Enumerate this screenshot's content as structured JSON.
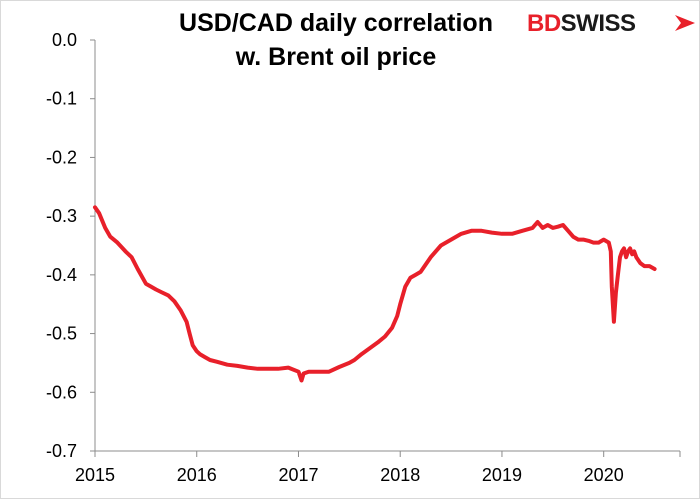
{
  "logo": {
    "text_primary": "BD",
    "text_secondary": "SWISS",
    "icon": "red-arrow-icon",
    "colors": {
      "primary": "#e8202a",
      "secondary": "#1a1a1a"
    }
  },
  "chart_data": {
    "type": "line",
    "title_line1": "USD/CAD daily correlation",
    "title_line2": "w. Brent oil price",
    "xlabel": "",
    "ylabel": "",
    "x_ticks": [
      "2015",
      "2016",
      "2017",
      "2018",
      "2019",
      "2020"
    ],
    "x_range": [
      2015.0,
      2020.75
    ],
    "y_ticks": [
      "0.0",
      "-0.1",
      "-0.2",
      "-0.3",
      "-0.4",
      "-0.5",
      "-0.6",
      "-0.7"
    ],
    "ylim": [
      -0.7,
      0.0
    ],
    "grid": false,
    "legend": "none",
    "series": [
      {
        "color": "#e8202a",
        "x": [
          2015.0,
          2015.04,
          2015.1,
          2015.15,
          2015.22,
          2015.3,
          2015.36,
          2015.42,
          2015.5,
          2015.55,
          2015.6,
          2015.66,
          2015.72,
          2015.78,
          2015.84,
          2015.9,
          2015.93,
          2015.96,
          2016.0,
          2016.03,
          2016.08,
          2016.13,
          2016.2,
          2016.3,
          2016.4,
          2016.5,
          2016.6,
          2016.7,
          2016.8,
          2016.9,
          2017.0,
          2017.03,
          2017.05,
          2017.1,
          2017.2,
          2017.3,
          2017.4,
          2017.5,
          2017.55,
          2017.62,
          2017.7,
          2017.78,
          2017.85,
          2017.92,
          2017.97,
          2018.0,
          2018.05,
          2018.1,
          2018.15,
          2018.2,
          2018.3,
          2018.4,
          2018.5,
          2018.6,
          2018.7,
          2018.8,
          2018.9,
          2019.0,
          2019.1,
          2019.2,
          2019.3,
          2019.35,
          2019.4,
          2019.45,
          2019.5,
          2019.55,
          2019.6,
          2019.65,
          2019.7,
          2019.75,
          2019.8,
          2019.85,
          2019.9,
          2019.95,
          2020.0,
          2020.05,
          2020.07,
          2020.08,
          2020.1,
          2020.12,
          2020.14,
          2020.16,
          2020.18,
          2020.2,
          2020.22,
          2020.24,
          2020.26,
          2020.28,
          2020.3,
          2020.32,
          2020.36,
          2020.4,
          2020.45,
          2020.5
        ],
        "y": [
          -0.285,
          -0.295,
          -0.32,
          -0.335,
          -0.345,
          -0.36,
          -0.37,
          -0.39,
          -0.415,
          -0.42,
          -0.425,
          -0.43,
          -0.435,
          -0.445,
          -0.46,
          -0.48,
          -0.5,
          -0.52,
          -0.53,
          -0.535,
          -0.54,
          -0.545,
          -0.548,
          -0.553,
          -0.555,
          -0.558,
          -0.56,
          -0.56,
          -0.56,
          -0.558,
          -0.565,
          -0.58,
          -0.568,
          -0.565,
          -0.565,
          -0.565,
          -0.557,
          -0.55,
          -0.545,
          -0.535,
          -0.525,
          -0.515,
          -0.505,
          -0.49,
          -0.47,
          -0.45,
          -0.42,
          -0.405,
          -0.4,
          -0.395,
          -0.37,
          -0.35,
          -0.34,
          -0.33,
          -0.325,
          -0.325,
          -0.328,
          -0.33,
          -0.33,
          -0.325,
          -0.32,
          -0.31,
          -0.32,
          -0.315,
          -0.32,
          -0.318,
          -0.315,
          -0.325,
          -0.335,
          -0.34,
          -0.34,
          -0.342,
          -0.345,
          -0.345,
          -0.34,
          -0.345,
          -0.36,
          -0.42,
          -0.48,
          -0.43,
          -0.4,
          -0.37,
          -0.36,
          -0.355,
          -0.37,
          -0.36,
          -0.355,
          -0.365,
          -0.36,
          -0.37,
          -0.38,
          -0.385,
          -0.385,
          -0.39
        ]
      }
    ]
  }
}
